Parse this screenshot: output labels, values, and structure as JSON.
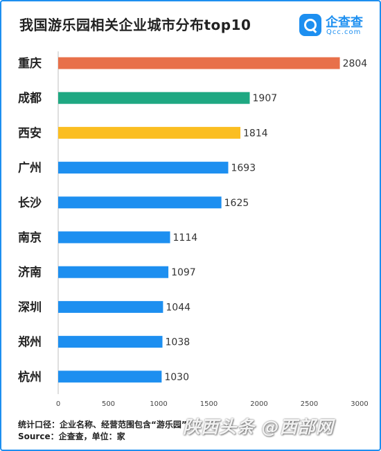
{
  "header": {
    "title": "我国游乐园相关企业城市分布top10",
    "logo_name": "企查查",
    "logo_sub": "Qcc.com"
  },
  "chart_data": {
    "type": "bar",
    "orientation": "horizontal",
    "title": "我国游乐园相关企业城市分布top10",
    "categories": [
      "重庆",
      "成都",
      "西安",
      "广州",
      "长沙",
      "南京",
      "济南",
      "深圳",
      "郑州",
      "杭州"
    ],
    "values": [
      2804,
      1907,
      1814,
      1693,
      1625,
      1114,
      1097,
      1044,
      1038,
      1030
    ],
    "colors": [
      "#e8704a",
      "#1fa882",
      "#fbbe21",
      "#1d8ff0",
      "#1d8ff0",
      "#1d8ff0",
      "#1d8ff0",
      "#1d8ff0",
      "#1d8ff0",
      "#1d8ff0"
    ],
    "xlim": [
      0,
      3000
    ],
    "xticks": [
      0,
      500,
      1000,
      1500,
      2000,
      2500,
      3000
    ],
    "grid": false,
    "legend": "none"
  },
  "footer": {
    "line1": "统计口径：企业名称、经营范围包含“游乐园”",
    "line2": "Source：企查查，单位：家"
  },
  "watermark": "陕西头条 @西部网"
}
